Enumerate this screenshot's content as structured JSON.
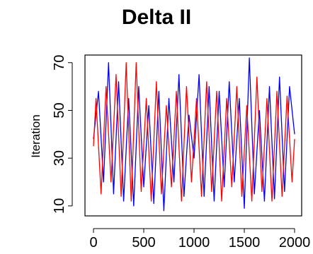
{
  "chart_data": {
    "type": "line",
    "title": "Delta II",
    "xlabel": "",
    "ylabel": "Iteration",
    "xlim": [
      0,
      2000
    ],
    "ylim": [
      7,
      72
    ],
    "x_ticks": [
      0,
      500,
      1000,
      1500,
      2000
    ],
    "x_tick_labels": [
      "0",
      "500",
      "1000",
      "1500",
      "2000"
    ],
    "y_ticks": [
      10,
      30,
      50,
      70
    ],
    "y_tick_labels": [
      "10",
      "30",
      "50",
      "70"
    ],
    "grid": false,
    "series": [
      {
        "color": "#0000ff",
        "x": [
          0,
          50,
          100,
          150,
          200,
          250,
          300,
          350,
          400,
          450,
          500,
          550,
          600,
          650,
          700,
          750,
          800,
          850,
          900,
          950,
          1000,
          1050,
          1100,
          1150,
          1200,
          1250,
          1300,
          1350,
          1400,
          1450,
          1500,
          1550,
          1600,
          1650,
          1700,
          1750,
          1800,
          1850,
          1900,
          1950,
          2000
        ],
        "values": [
          38,
          58,
          20,
          70,
          15,
          62,
          12,
          55,
          10,
          60,
          18,
          52,
          11,
          58,
          8,
          55,
          20,
          65,
          14,
          48,
          30,
          65,
          14,
          60,
          12,
          58,
          18,
          62,
          20,
          55,
          9,
          72,
          15,
          50,
          12,
          60,
          13,
          64,
          16,
          60,
          40
        ]
      },
      {
        "color": "#ff0000",
        "x": [
          0,
          25,
          75,
          125,
          175,
          225,
          275,
          325,
          375,
          425,
          475,
          525,
          575,
          625,
          675,
          725,
          775,
          825,
          875,
          925,
          975,
          1025,
          1075,
          1125,
          1175,
          1225,
          1275,
          1325,
          1375,
          1425,
          1475,
          1525,
          1575,
          1625,
          1675,
          1725,
          1775,
          1825,
          1875,
          1925,
          1975,
          2000
        ],
        "values": [
          35,
          55,
          15,
          60,
          20,
          65,
          14,
          70,
          12,
          70,
          16,
          55,
          12,
          62,
          15,
          52,
          18,
          58,
          12,
          60,
          20,
          55,
          14,
          62,
          16,
          58,
          12,
          55,
          18,
          60,
          14,
          52,
          12,
          64,
          16,
          55,
          12,
          58,
          14,
          56,
          20,
          38
        ]
      }
    ]
  }
}
